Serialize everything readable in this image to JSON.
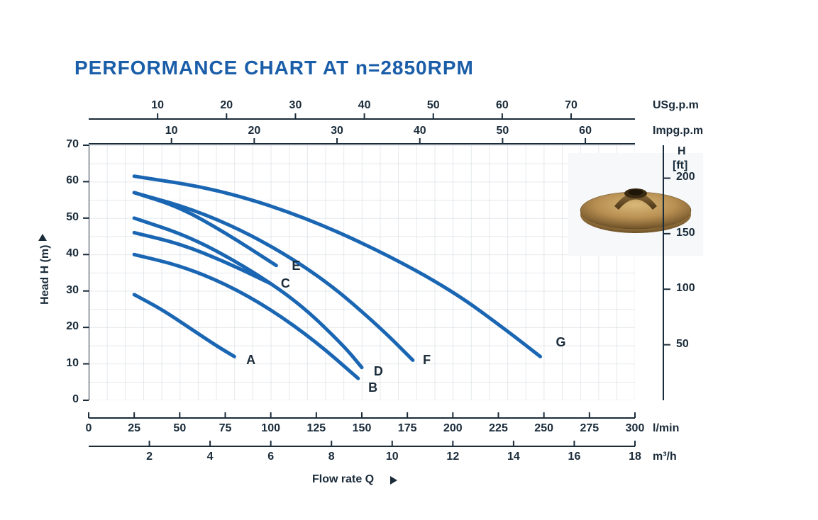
{
  "title": "PERFORMANCE CHART AT n=2850RPM",
  "axes": {
    "x_title": "Flow rate Q",
    "y_title": "Head H (m)",
    "y_left": {
      "unit": "",
      "min": 0,
      "max": 70,
      "ticks": [
        0,
        10,
        20,
        30,
        40,
        50,
        60,
        70
      ]
    },
    "y_right": {
      "unit_top": "H",
      "unit_sub": "[ft]",
      "ticks": [
        50,
        100,
        150,
        200
      ]
    },
    "x_bottom1": {
      "unit": "l/min",
      "min": 0,
      "max": 300,
      "ticks": [
        0,
        25,
        50,
        75,
        100,
        125,
        150,
        175,
        200,
        225,
        250,
        275,
        300
      ]
    },
    "x_bottom2": {
      "unit": "m³/h",
      "ticks": [
        2,
        4,
        6,
        8,
        10,
        12,
        14,
        16,
        18
      ]
    },
    "x_top1": {
      "unit": "USg.p.m",
      "ticks": [
        10,
        20,
        30,
        40,
        50,
        60,
        70
      ]
    },
    "x_top2": {
      "unit": "Impg.p.m",
      "ticks": [
        10,
        20,
        30,
        40,
        50,
        60
      ]
    }
  },
  "style": {
    "title_color": "#1a5da8",
    "curve_color": "#1a66b3",
    "curve_stroke_width": 5,
    "axis_color": "#1a2b3a",
    "grid_color": "#b8c2cc",
    "background": "#ffffff",
    "font_family": "Arial",
    "tick_fontsize": 16,
    "title_fontsize": 28
  },
  "curves": [
    {
      "label": "A",
      "label_pos_lmin": 85,
      "label_pos_head": 11,
      "points": [
        {
          "q_lmin": 25,
          "head_m": 29
        },
        {
          "q_lmin": 40,
          "head_m": 25
        },
        {
          "q_lmin": 55,
          "head_m": 20
        },
        {
          "q_lmin": 70,
          "head_m": 15
        },
        {
          "q_lmin": 80,
          "head_m": 12
        }
      ]
    },
    {
      "label": "B",
      "label_pos_lmin": 152,
      "label_pos_head": 3.5,
      "points": [
        {
          "q_lmin": 25,
          "head_m": 40
        },
        {
          "q_lmin": 50,
          "head_m": 37
        },
        {
          "q_lmin": 75,
          "head_m": 32
        },
        {
          "q_lmin": 100,
          "head_m": 25
        },
        {
          "q_lmin": 125,
          "head_m": 16
        },
        {
          "q_lmin": 148,
          "head_m": 6
        }
      ]
    },
    {
      "label": "C",
      "label_pos_lmin": 104,
      "label_pos_head": 32,
      "points": [
        {
          "q_lmin": 25,
          "head_m": 46
        },
        {
          "q_lmin": 50,
          "head_m": 43
        },
        {
          "q_lmin": 75,
          "head_m": 38
        },
        {
          "q_lmin": 100,
          "head_m": 32
        }
      ]
    },
    {
      "label": "D",
      "label_pos_lmin": 155,
      "label_pos_head": 8,
      "points": [
        {
          "q_lmin": 25,
          "head_m": 50
        },
        {
          "q_lmin": 55,
          "head_m": 45
        },
        {
          "q_lmin": 85,
          "head_m": 37
        },
        {
          "q_lmin": 115,
          "head_m": 27
        },
        {
          "q_lmin": 140,
          "head_m": 15
        },
        {
          "q_lmin": 150,
          "head_m": 9
        }
      ]
    },
    {
      "label": "E",
      "label_pos_lmin": 110,
      "label_pos_head": 37,
      "points": [
        {
          "q_lmin": 25,
          "head_m": 57
        },
        {
          "q_lmin": 50,
          "head_m": 53
        },
        {
          "q_lmin": 75,
          "head_m": 46
        },
        {
          "q_lmin": 103,
          "head_m": 37
        }
      ]
    },
    {
      "label": "F",
      "label_pos_lmin": 182,
      "label_pos_head": 11,
      "points": [
        {
          "q_lmin": 25,
          "head_m": 57
        },
        {
          "q_lmin": 60,
          "head_m": 52
        },
        {
          "q_lmin": 95,
          "head_m": 44
        },
        {
          "q_lmin": 130,
          "head_m": 33
        },
        {
          "q_lmin": 160,
          "head_m": 20
        },
        {
          "q_lmin": 178,
          "head_m": 11
        }
      ]
    },
    {
      "label": "G",
      "label_pos_lmin": 255,
      "label_pos_head": 16,
      "points": [
        {
          "q_lmin": 25,
          "head_m": 61.5
        },
        {
          "q_lmin": 70,
          "head_m": 58
        },
        {
          "q_lmin": 115,
          "head_m": 51
        },
        {
          "q_lmin": 160,
          "head_m": 41
        },
        {
          "q_lmin": 200,
          "head_m": 30
        },
        {
          "q_lmin": 230,
          "head_m": 19
        },
        {
          "q_lmin": 248,
          "head_m": 12
        }
      ]
    }
  ],
  "impeller_label": "impeller"
}
